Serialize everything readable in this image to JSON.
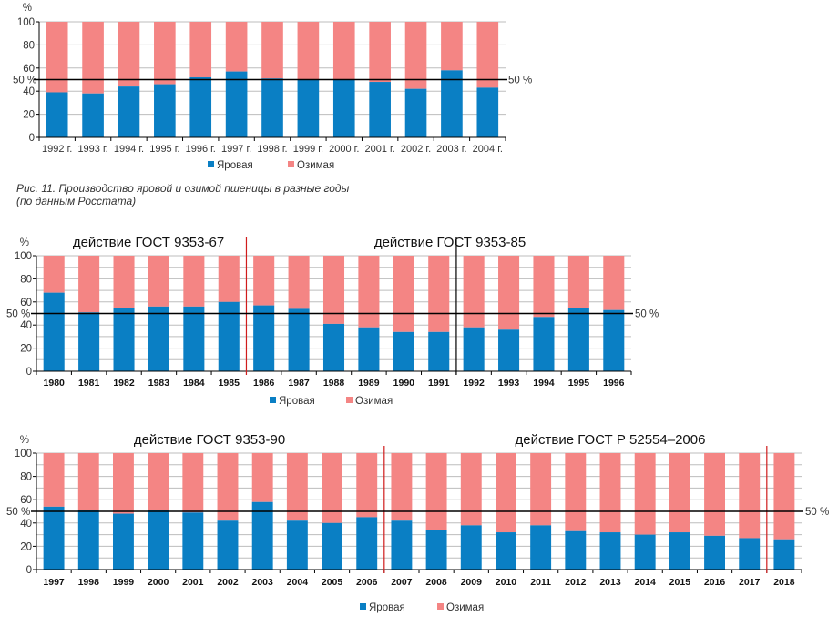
{
  "caption": {
    "line1": "Рис. 11. Производство яровой и озимой пшеницы в разные годы",
    "line2": "(по данным Росстата)"
  },
  "colors": {
    "spring": "#0a7fc4",
    "winter": "#f48584",
    "divider_red": "#d01c1c",
    "divider_black": "#000000"
  },
  "chart_data": [
    {
      "type": "bar",
      "stacked": true,
      "title": "",
      "xlabel": "",
      "ylabel": "%",
      "ylim": [
        0,
        100
      ],
      "yticks": [
        "0",
        "20",
        "40",
        "60",
        "80",
        "100"
      ],
      "reference_line": {
        "value": 50,
        "label_left": "50 %",
        "label_right": "50 %"
      },
      "categories": [
        "1992 г.",
        "1993 г.",
        "1994 г.",
        "1995 г.",
        "1996 г.",
        "1997 г.",
        "1998 г.",
        "1999 г.",
        "2000 г.",
        "2001 г.",
        "2002 г.",
        "2003 г.",
        "2004 г."
      ],
      "series": [
        {
          "name": "Яровая",
          "values": [
            39,
            38,
            44,
            46,
            52,
            57,
            51,
            50,
            50,
            48,
            42,
            58,
            43
          ]
        },
        {
          "name": "Озимая",
          "values": [
            61,
            62,
            56,
            54,
            48,
            43,
            49,
            50,
            50,
            52,
            58,
            42,
            57
          ]
        }
      ],
      "legend": [
        "Яровая",
        "Озимая"
      ],
      "legend_position": "bottom",
      "grid": true,
      "annotations": []
    },
    {
      "type": "bar",
      "stacked": true,
      "title": "",
      "xlabel": "",
      "ylabel": "%",
      "ylim": [
        0,
        100
      ],
      "yticks": [
        "0",
        "20",
        "40",
        "60",
        "80",
        "100"
      ],
      "reference_line": {
        "value": 50,
        "label_left": "50 %",
        "label_right": "50 %"
      },
      "categories": [
        "1980",
        "1981",
        "1982",
        "1983",
        "1984",
        "1985",
        "1986",
        "1987",
        "1988",
        "1989",
        "1990",
        "1991",
        "1992",
        "1993",
        "1994",
        "1995",
        "1996"
      ],
      "series": [
        {
          "name": "Яровая",
          "values": [
            68,
            51,
            55,
            56,
            56,
            60,
            57,
            54,
            41,
            38,
            34,
            34,
            38,
            36,
            47,
            55,
            53
          ]
        },
        {
          "name": "Озимая",
          "values": [
            32,
            49,
            45,
            44,
            44,
            40,
            43,
            46,
            59,
            62,
            66,
            66,
            62,
            64,
            53,
            45,
            47
          ]
        }
      ],
      "legend": [
        "Яровая",
        "Озимая"
      ],
      "legend_position": "bottom",
      "grid": true,
      "annotations": [
        {
          "text": "действие ГОСТ 9353-67",
          "span": [
            "1980",
            "1985"
          ]
        },
        {
          "text": "действие ГОСТ 9353-85",
          "span": [
            "1986",
            "1996"
          ]
        }
      ],
      "dividers": [
        {
          "after": "1985",
          "color": "red"
        },
        {
          "after": "1991",
          "color": "black"
        }
      ]
    },
    {
      "type": "bar",
      "stacked": true,
      "title": "",
      "xlabel": "",
      "ylabel": "%",
      "ylim": [
        0,
        100
      ],
      "yticks": [
        "0",
        "20",
        "40",
        "60",
        "80",
        "100"
      ],
      "reference_line": {
        "value": 50,
        "label_left": "50 %",
        "label_right": "50 %"
      },
      "categories": [
        "1997",
        "1998",
        "1999",
        "2000",
        "2001",
        "2002",
        "2003",
        "2004",
        "2005",
        "2006",
        "2007",
        "2008",
        "2009",
        "2010",
        "2011",
        "2012",
        "2013",
        "2014",
        "2015",
        "2016",
        "2017",
        "2018"
      ],
      "series": [
        {
          "name": "Яровая",
          "values": [
            54,
            51,
            48,
            51,
            49,
            42,
            58,
            42,
            40,
            45,
            42,
            34,
            38,
            32,
            38,
            33,
            32,
            30,
            32,
            29,
            27,
            26
          ]
        },
        {
          "name": "Озимая",
          "values": [
            46,
            49,
            52,
            49,
            51,
            58,
            42,
            58,
            60,
            55,
            58,
            66,
            62,
            68,
            62,
            67,
            68,
            70,
            68,
            71,
            73,
            74
          ]
        }
      ],
      "legend": [
        "Яровая",
        "Озимая"
      ],
      "legend_position": "bottom",
      "grid": true,
      "annotations": [
        {
          "text": "действие ГОСТ 9353-90",
          "span": [
            "1997",
            "2006"
          ]
        },
        {
          "text": "действие ГОСТ Р 52554–2006",
          "span": [
            "2007",
            "2017"
          ]
        }
      ],
      "dividers": [
        {
          "after": "2006",
          "color": "red"
        },
        {
          "after": "2017",
          "color": "red"
        }
      ]
    }
  ]
}
